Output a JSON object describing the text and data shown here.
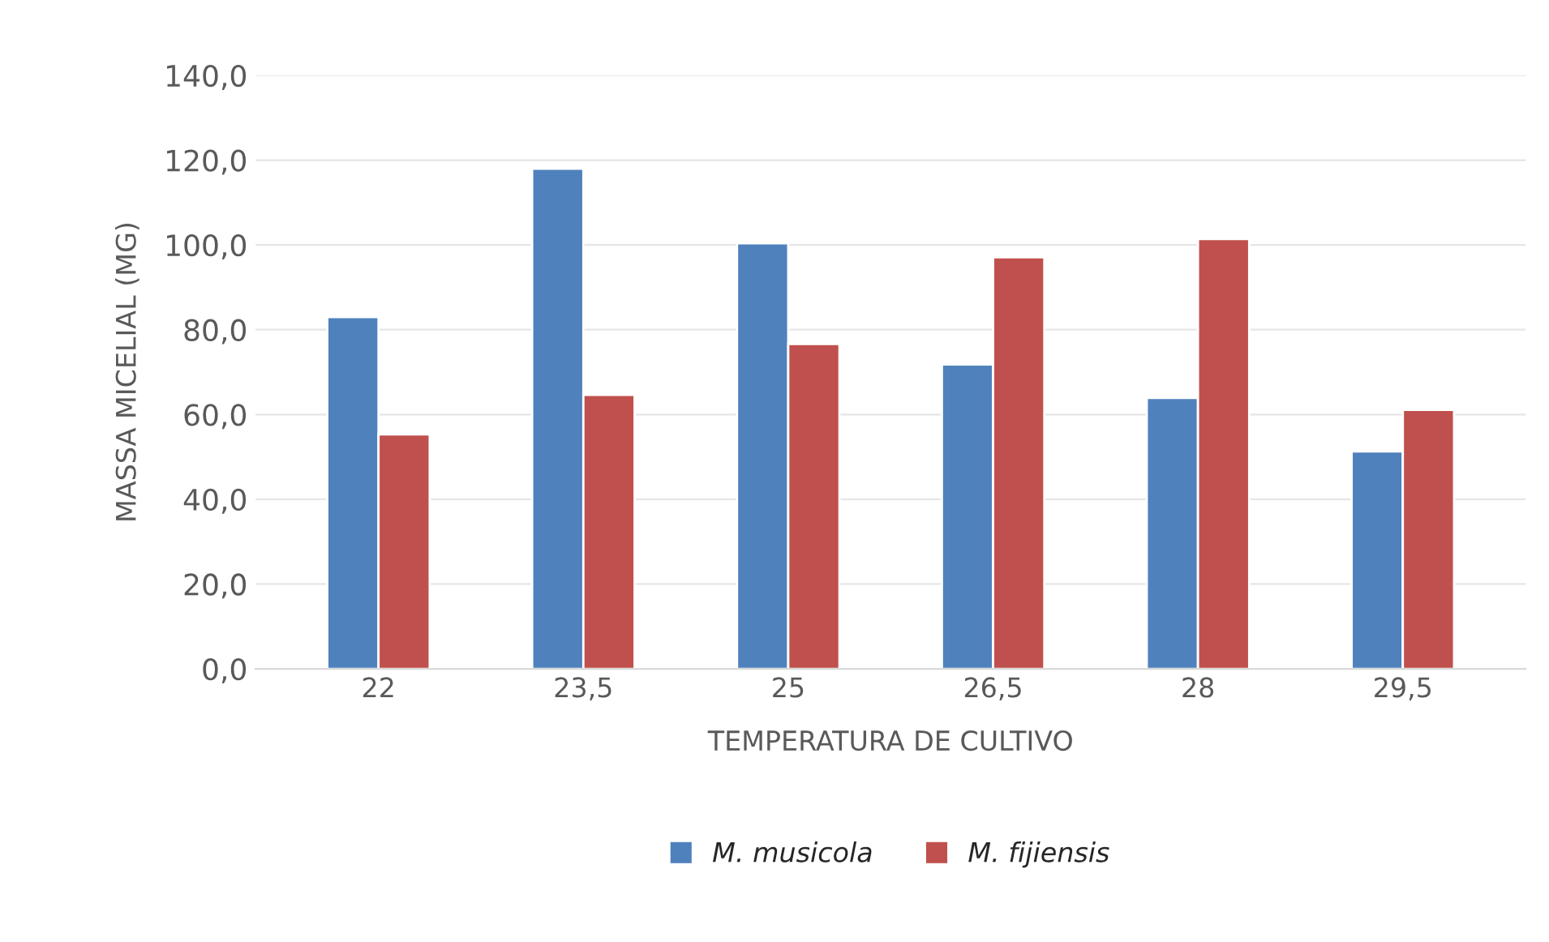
{
  "chart_data": {
    "type": "bar",
    "xlabel": "TEMPERATURA DE CULTIVO",
    "ylabel": "MASSA MICELIAL (MG)",
    "categories": [
      "22",
      "23,5",
      "25",
      "26,5",
      "28",
      "29,5"
    ],
    "series": [
      {
        "name": "M. musicola",
        "color": "#4f81bd",
        "values": [
          83,
          118,
          100.4,
          71.8,
          63.9,
          51.3
        ]
      },
      {
        "name": "M. fijiensis",
        "color": "#c0504d",
        "values": [
          55.3,
          64.6,
          76.6,
          97.1,
          101.4,
          61.1
        ]
      }
    ],
    "ylim": [
      0,
      140
    ],
    "yticks": [
      {
        "value": 0,
        "label": "0,0"
      },
      {
        "value": 20,
        "label": "20,0"
      },
      {
        "value": 40,
        "label": "40,0"
      },
      {
        "value": 60,
        "label": "60,0"
      },
      {
        "value": 80,
        "label": "80,0"
      },
      {
        "value": 100,
        "label": "100,0"
      },
      {
        "value": 120,
        "label": "120,0"
      },
      {
        "value": 140,
        "label": "140,0"
      }
    ],
    "grid": "y",
    "legend": "bottom"
  }
}
